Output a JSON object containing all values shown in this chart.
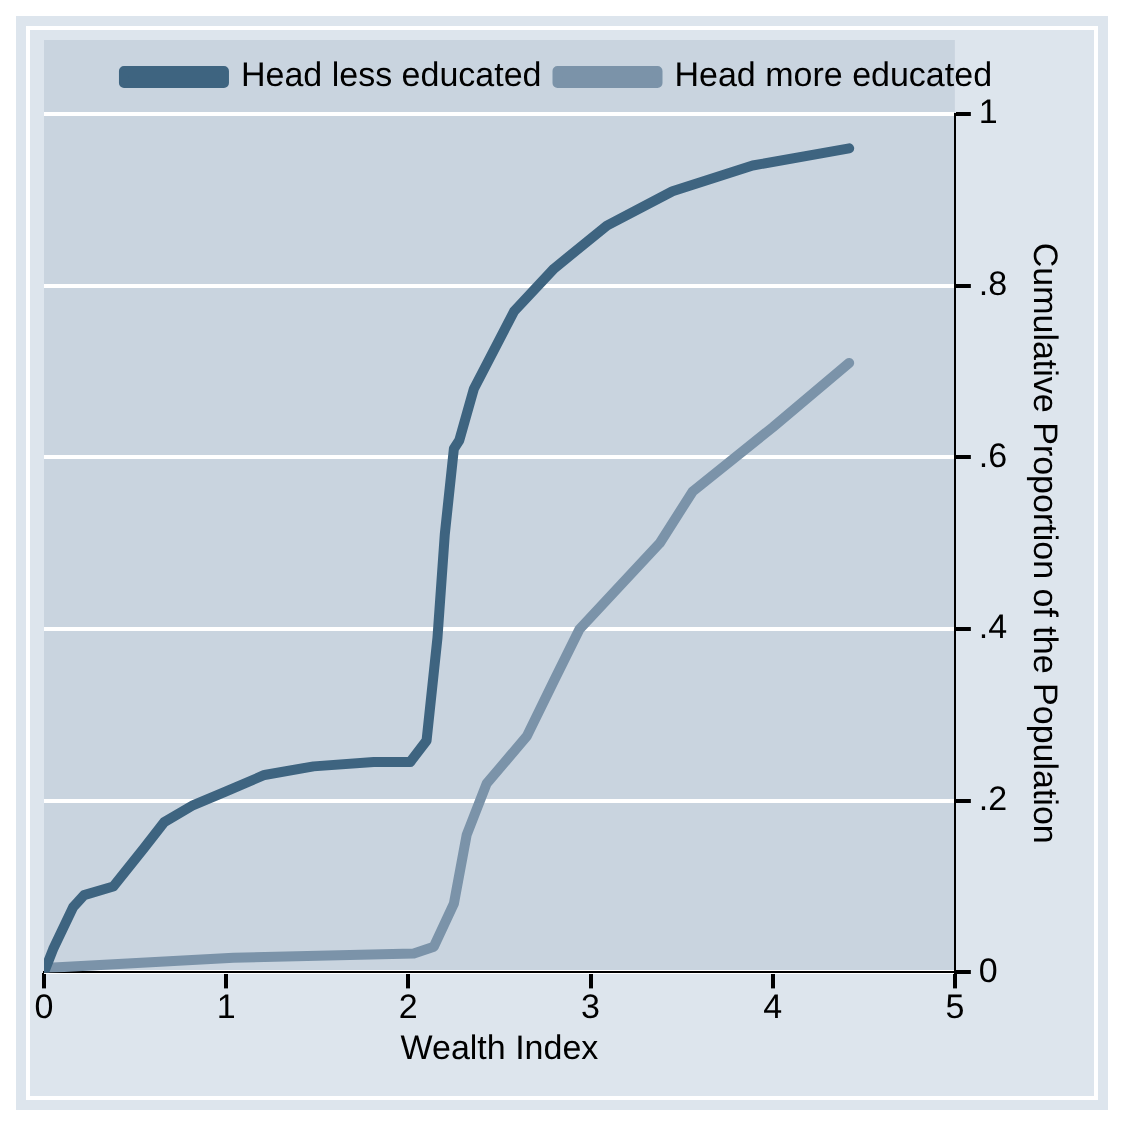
{
  "chart_data": {
    "type": "line",
    "xlabel": "Wealth Index",
    "ylabel": "Cumulative Proportion of the Population",
    "xlim": [
      0,
      5
    ],
    "xticks": [
      0,
      1,
      2,
      3,
      4,
      5
    ],
    "ylim": [
      0,
      1
    ],
    "yticks": [
      0,
      {
        "value": 0.2,
        "label": ".2"
      },
      {
        "value": 0.4,
        "label": ".4"
      },
      {
        "value": 0.6,
        "label": ".6"
      },
      {
        "value": 0.8,
        "label": ".8"
      },
      1
    ],
    "grid": "y",
    "legend": "top",
    "marker": "none",
    "line_style": "solid",
    "series": [
      {
        "name": "Head less educated",
        "color": "#3e6480",
        "x": [
          0,
          0.05,
          0.16,
          0.22,
          0.38,
          0.55,
          0.66,
          0.82,
          0.99,
          1.21,
          1.48,
          1.81,
          2.01,
          2.1,
          2.16,
          2.2,
          2.25,
          2.28,
          2.36,
          2.58,
          2.8,
          3.09,
          3.45,
          3.89,
          4.42
        ],
        "values": [
          0,
          0.027,
          0.076,
          0.09,
          0.1,
          0.145,
          0.175,
          0.195,
          0.21,
          0.23,
          0.24,
          0.245,
          0.245,
          0.27,
          0.39,
          0.51,
          0.61,
          0.62,
          0.68,
          0.77,
          0.82,
          0.87,
          0.91,
          0.94,
          0.96
        ]
      },
      {
        "name": "Head more educated",
        "color": "#7b93a9",
        "x": [
          0,
          1.04,
          2.03,
          2.14,
          2.25,
          2.32,
          2.43,
          2.65,
          2.8,
          2.94,
          3.16,
          3.38,
          3.56,
          4.0,
          4.42
        ],
        "values": [
          0.005,
          0.017,
          0.022,
          0.03,
          0.08,
          0.16,
          0.22,
          0.275,
          0.34,
          0.4,
          0.45,
          0.5,
          0.56,
          0.635,
          0.71
        ]
      }
    ]
  }
}
